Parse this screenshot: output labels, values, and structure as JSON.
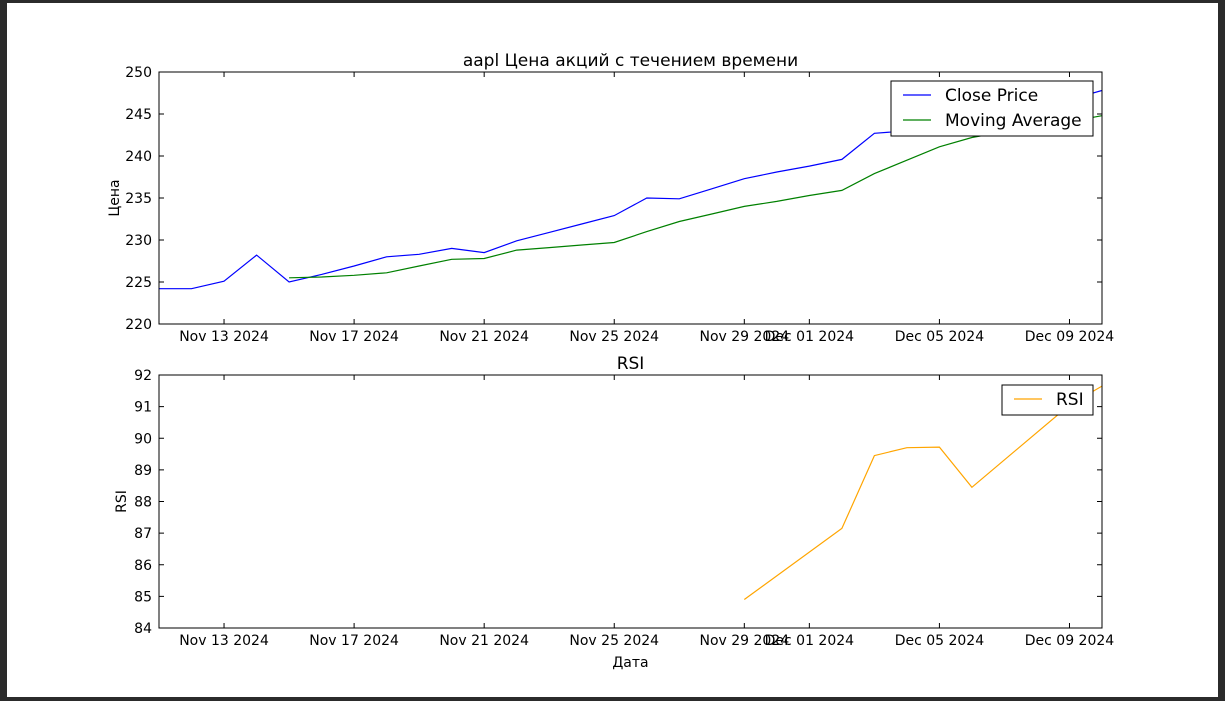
{
  "chart_data": [
    {
      "type": "line",
      "title": "aapl Цена акций с течением времени",
      "ylabel": "Цена",
      "xlabel": "",
      "xlim": [
        "2024-11-11",
        "2024-12-10"
      ],
      "ylim": [
        220,
        250
      ],
      "yticks": [
        220,
        225,
        230,
        235,
        240,
        245,
        250
      ],
      "xticks": [
        {
          "date": "2024-11-13",
          "label": "Nov 13 2024"
        },
        {
          "date": "2024-11-17",
          "label": "Nov 17 2024"
        },
        {
          "date": "2024-11-21",
          "label": "Nov 21 2024"
        },
        {
          "date": "2024-11-25",
          "label": "Nov 25 2024"
        },
        {
          "date": "2024-11-29",
          "label": "Nov 29 2024"
        },
        {
          "date": "2024-12-01",
          "label": "Dec 01 2024"
        },
        {
          "date": "2024-12-05",
          "label": "Dec 05 2024"
        },
        {
          "date": "2024-12-09",
          "label": "Dec 09 2024"
        }
      ],
      "legend_position": "upper right",
      "series": [
        {
          "name": "Close Price",
          "color": "#0000ff",
          "points": [
            [
              "2024-11-11",
              224.2
            ],
            [
              "2024-11-12",
              224.2
            ],
            [
              "2024-11-13",
              225.1
            ],
            [
              "2024-11-14",
              228.2
            ],
            [
              "2024-11-15",
              225.0
            ],
            [
              "2024-11-16",
              225.9
            ],
            [
              "2024-11-17",
              226.9
            ],
            [
              "2024-11-18",
              228.0
            ],
            [
              "2024-11-19",
              228.3
            ],
            [
              "2024-11-20",
              229.0
            ],
            [
              "2024-11-21",
              228.5
            ],
            [
              "2024-11-22",
              229.9
            ],
            [
              "2024-11-23",
              230.9
            ],
            [
              "2024-11-24",
              231.9
            ],
            [
              "2024-11-25",
              232.9
            ],
            [
              "2024-11-26",
              235.0
            ],
            [
              "2024-11-27",
              234.9
            ],
            [
              "2024-11-28",
              236.1
            ],
            [
              "2024-11-29",
              237.3
            ],
            [
              "2024-11-30",
              238.1
            ],
            [
              "2024-12-01",
              238.8
            ],
            [
              "2024-12-02",
              239.6
            ],
            [
              "2024-12-03",
              242.7
            ],
            [
              "2024-12-04",
              243.0
            ],
            [
              "2024-12-05",
              243.8
            ],
            [
              "2024-12-06",
              244.3
            ],
            [
              "2024-12-07",
              245.0
            ],
            [
              "2024-12-08",
              245.9
            ],
            [
              "2024-12-09",
              246.7
            ],
            [
              "2024-12-10",
              247.8
            ]
          ]
        },
        {
          "name": "Moving Average",
          "color": "#008000",
          "points": [
            [
              "2024-11-15",
              225.5
            ],
            [
              "2024-11-16",
              225.6
            ],
            [
              "2024-11-17",
              225.8
            ],
            [
              "2024-11-18",
              226.1
            ],
            [
              "2024-11-19",
              226.9
            ],
            [
              "2024-11-20",
              227.7
            ],
            [
              "2024-11-21",
              227.8
            ],
            [
              "2024-11-22",
              228.8
            ],
            [
              "2024-11-23",
              229.1
            ],
            [
              "2024-11-24",
              229.4
            ],
            [
              "2024-11-25",
              229.7
            ],
            [
              "2024-11-26",
              231.0
            ],
            [
              "2024-11-27",
              232.2
            ],
            [
              "2024-11-28",
              233.1
            ],
            [
              "2024-11-29",
              234.0
            ],
            [
              "2024-11-30",
              234.6
            ],
            [
              "2024-12-01",
              235.3
            ],
            [
              "2024-12-02",
              235.9
            ],
            [
              "2024-12-03",
              237.9
            ],
            [
              "2024-12-04",
              239.5
            ],
            [
              "2024-12-05",
              241.1
            ],
            [
              "2024-12-06",
              242.2
            ],
            [
              "2024-12-07",
              242.9
            ],
            [
              "2024-12-08",
              243.5
            ],
            [
              "2024-12-09",
              244.1
            ],
            [
              "2024-12-10",
              244.8
            ]
          ]
        }
      ]
    },
    {
      "type": "line",
      "title": "RSI",
      "ylabel": "RSI",
      "xlabel": "Дата",
      "xlim": [
        "2024-11-11",
        "2024-12-10"
      ],
      "ylim": [
        84,
        92
      ],
      "yticks": [
        84,
        85,
        86,
        87,
        88,
        89,
        90,
        91,
        92
      ],
      "xticks": [
        {
          "date": "2024-11-13",
          "label": "Nov 13 2024"
        },
        {
          "date": "2024-11-17",
          "label": "Nov 17 2024"
        },
        {
          "date": "2024-11-21",
          "label": "Nov 21 2024"
        },
        {
          "date": "2024-11-25",
          "label": "Nov 25 2024"
        },
        {
          "date": "2024-11-29",
          "label": "Nov 29 2024"
        },
        {
          "date": "2024-12-01",
          "label": "Dec 01 2024"
        },
        {
          "date": "2024-12-05",
          "label": "Dec 05 2024"
        },
        {
          "date": "2024-12-09",
          "label": "Dec 09 2024"
        }
      ],
      "legend_position": "upper right",
      "series": [
        {
          "name": "RSI",
          "color": "#ffa500",
          "points": [
            [
              "2024-11-29",
              84.9
            ],
            [
              "2024-12-02",
              87.15
            ],
            [
              "2024-12-03",
              89.45
            ],
            [
              "2024-12-04",
              89.7
            ],
            [
              "2024-12-05",
              89.72
            ],
            [
              "2024-12-06",
              88.45
            ],
            [
              "2024-12-09",
              91.05
            ],
            [
              "2024-12-10",
              91.65
            ]
          ]
        }
      ]
    }
  ]
}
